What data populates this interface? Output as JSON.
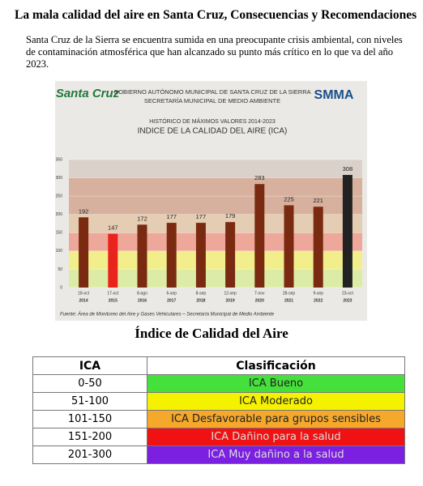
{
  "header": {
    "title": "La mala calidad del aire en Santa Cruz, Consecuencias y Recomendaciones",
    "paragraph": "Santa Cruz de la Sierra se encuentra sumida en una preocupante crisis ambiental, con niveles de contaminación atmosférica que han alcanzado su punto más crítico en lo que va del año 2023."
  },
  "chart_data": {
    "type": "bar",
    "logo_left": "Santa Cruz",
    "logo_right": "SMMA",
    "org_line1": "GOBIERNO AUTÓNOMO MUNICIPAL DE SANTA CRUZ DE LA SIERRA",
    "org_line2": "SECRETARÍA MUNICIPAL DE MEDIO AMBIENTE",
    "subtitle": "HISTÓRICO DE MÁXIMOS VALORES 2014-2023",
    "title": "INDICE DE LA CALIDAD DEL AIRE (ICA)",
    "categories": [
      "18-oct",
      "17-oct",
      "8-ago",
      "6-sep",
      "8-sep",
      "12-sep",
      "7-nov",
      "28-sep",
      "9-sep",
      "23-oct"
    ],
    "years": [
      "2014",
      "2015",
      "2016",
      "2017",
      "2018",
      "2019",
      "2020",
      "2021",
      "2022",
      "2023"
    ],
    "values": [
      192,
      147,
      172,
      177,
      177,
      179,
      283,
      225,
      221,
      308
    ],
    "colors": [
      "#7a2a10",
      "#e8241c",
      "#7a2a10",
      "#7a2a10",
      "#7a2a10",
      "#7a2a10",
      "#7a2a10",
      "#7a2a10",
      "#7a2a10",
      "#222222"
    ],
    "bands": [
      {
        "from": 0,
        "to": 50,
        "color": "#d9ec9c"
      },
      {
        "from": 50,
        "to": 100,
        "color": "#f3ee7c"
      },
      {
        "from": 100,
        "to": 150,
        "color": "#ef9c8c"
      },
      {
        "from": 150,
        "to": 200,
        "color": "#e3c8aa"
      },
      {
        "from": 200,
        "to": 300,
        "color": "#d3a792"
      },
      {
        "from": 300,
        "to": 350,
        "color": "#d7cdc5"
      }
    ],
    "ylim": [
      0,
      350
    ],
    "yticks": [
      0,
      50,
      100,
      150,
      200,
      250,
      300,
      350
    ],
    "grid": true,
    "source": "Fuente: Área de Monitoreo del Aire y Gases Vehiculares – Secretaría Municipal de Medio Ambiente"
  },
  "table": {
    "title": "Índice de Calidad del Aire",
    "header": [
      "ICA",
      "Clasificación"
    ],
    "rows": [
      [
        "0-50",
        "ICA Bueno"
      ],
      [
        "51-100",
        "ICA Moderado"
      ],
      [
        "101-150",
        "ICA Desfavorable para grupos sensibles"
      ],
      [
        "151-200",
        "ICA Dañino para la salud"
      ],
      [
        "201-300",
        "ICA Muy dañino a la salud"
      ]
    ],
    "colors": [
      "#46e03c",
      "#f4f200",
      "#f5a82a",
      "#f01212",
      "#7b20e0"
    ]
  }
}
